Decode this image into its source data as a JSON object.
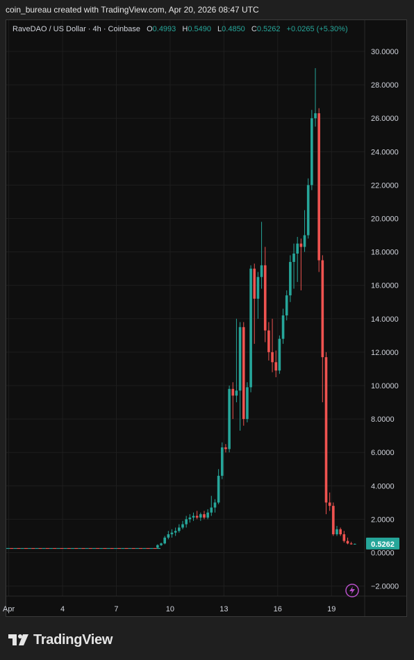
{
  "attribution": "coin_bureau created with TradingView.com, Apr 20, 2026 08:47 UTC",
  "legend": {
    "symbol": "RaveDAO / US Dollar · 4h · Coinbase",
    "o_label": "O",
    "o_value": "0.4993",
    "h_label": "H",
    "h_value": "0.5490",
    "l_label": "L",
    "l_value": "0.4850",
    "c_label": "C",
    "c_value": "0.5262",
    "change": "+0.0265 (+5.30%)"
  },
  "current_price": "0.5262",
  "footer": {
    "brand": "TradingView",
    "logo_icon": "tradingview-logo-icon"
  },
  "colors": {
    "up": "#26a69a",
    "down": "#ef5350",
    "background": "#0f0f0f",
    "price_tag": "#26a69a"
  },
  "chart_data": {
    "type": "candlestick",
    "timeframe": "4h",
    "ylim": [
      -2.6,
      31
    ],
    "y_ticks": [
      "30.0000",
      "28.0000",
      "26.0000",
      "24.0000",
      "22.0000",
      "20.0000",
      "18.0000",
      "16.0000",
      "14.0000",
      "12.0000",
      "10.0000",
      "8.0000",
      "6.0000",
      "4.0000",
      "2.0000",
      "0.0000",
      "−2.0000"
    ],
    "y_tick_values": [
      30,
      28,
      26,
      24,
      22,
      20,
      18,
      16,
      14,
      12,
      10,
      8,
      6,
      4,
      2,
      0,
      -2
    ],
    "x_ticks": [
      "Apr",
      "4",
      "7",
      "10",
      "13",
      "16",
      "19"
    ],
    "x_tick_days": [
      1,
      4,
      7,
      10,
      13,
      16,
      19
    ],
    "x_range_days": [
      0.86,
      20.85
    ],
    "candles": [
      {
        "d": 9.3,
        "o": 0.3,
        "h": 0.5,
        "l": 0.25,
        "c": 0.45
      },
      {
        "d": 9.5,
        "o": 0.45,
        "h": 0.6,
        "l": 0.4,
        "c": 0.55
      },
      {
        "d": 9.7,
        "o": 0.55,
        "h": 1.0,
        "l": 0.5,
        "c": 0.9
      },
      {
        "d": 9.9,
        "o": 0.9,
        "h": 1.3,
        "l": 0.8,
        "c": 1.1
      },
      {
        "d": 10.1,
        "o": 1.1,
        "h": 1.4,
        "l": 0.9,
        "c": 1.2
      },
      {
        "d": 10.3,
        "o": 1.2,
        "h": 1.5,
        "l": 1.0,
        "c": 1.3
      },
      {
        "d": 10.5,
        "o": 1.3,
        "h": 1.7,
        "l": 1.2,
        "c": 1.5
      },
      {
        "d": 10.7,
        "o": 1.5,
        "h": 1.9,
        "l": 1.4,
        "c": 1.7
      },
      {
        "d": 10.9,
        "o": 1.7,
        "h": 2.2,
        "l": 1.5,
        "c": 2.0
      },
      {
        "d": 11.1,
        "o": 2.0,
        "h": 2.3,
        "l": 1.8,
        "c": 2.1
      },
      {
        "d": 11.3,
        "o": 2.1,
        "h": 2.4,
        "l": 1.9,
        "c": 2.2
      },
      {
        "d": 11.5,
        "o": 2.2,
        "h": 2.5,
        "l": 2.0,
        "c": 2.1
      },
      {
        "d": 11.7,
        "o": 2.1,
        "h": 2.4,
        "l": 1.9,
        "c": 2.3
      },
      {
        "d": 11.9,
        "o": 2.3,
        "h": 2.5,
        "l": 2.0,
        "c": 2.1
      },
      {
        "d": 12.1,
        "o": 2.1,
        "h": 2.6,
        "l": 2.0,
        "c": 2.4
      },
      {
        "d": 12.3,
        "o": 2.4,
        "h": 3.4,
        "l": 2.2,
        "c": 2.7
      },
      {
        "d": 12.5,
        "o": 2.7,
        "h": 3.2,
        "l": 2.4,
        "c": 3.0
      },
      {
        "d": 12.7,
        "o": 3.0,
        "h": 5.0,
        "l": 2.9,
        "c": 4.6
      },
      {
        "d": 12.9,
        "o": 4.6,
        "h": 6.6,
        "l": 4.4,
        "c": 6.3
      },
      {
        "d": 13.1,
        "o": 6.3,
        "h": 6.5,
        "l": 6.0,
        "c": 6.2
      },
      {
        "d": 13.3,
        "o": 6.2,
        "h": 10.0,
        "l": 6.0,
        "c": 9.8
      },
      {
        "d": 13.5,
        "o": 9.8,
        "h": 10.2,
        "l": 8.0,
        "c": 9.4
      },
      {
        "d": 13.7,
        "o": 9.4,
        "h": 14.0,
        "l": 9.0,
        "c": 9.7
      },
      {
        "d": 13.9,
        "o": 9.7,
        "h": 13.8,
        "l": 7.3,
        "c": 13.5
      },
      {
        "d": 14.1,
        "o": 13.5,
        "h": 13.8,
        "l": 7.6,
        "c": 8.0
      },
      {
        "d": 14.3,
        "o": 8.0,
        "h": 10.2,
        "l": 7.8,
        "c": 9.9
      },
      {
        "d": 14.5,
        "o": 9.9,
        "h": 17.2,
        "l": 9.6,
        "c": 17.0
      },
      {
        "d": 14.7,
        "o": 17.0,
        "h": 17.3,
        "l": 12.5,
        "c": 15.2
      },
      {
        "d": 14.9,
        "o": 15.2,
        "h": 16.8,
        "l": 14.0,
        "c": 16.5
      },
      {
        "d": 15.1,
        "o": 16.5,
        "h": 19.8,
        "l": 15.8,
        "c": 17.2
      },
      {
        "d": 15.3,
        "o": 17.2,
        "h": 18.3,
        "l": 12.6,
        "c": 13.3
      },
      {
        "d": 15.5,
        "o": 13.3,
        "h": 13.8,
        "l": 11.5,
        "c": 12.0
      },
      {
        "d": 15.7,
        "o": 12.0,
        "h": 14.0,
        "l": 10.8,
        "c": 11.4
      },
      {
        "d": 15.9,
        "o": 11.4,
        "h": 12.1,
        "l": 10.5,
        "c": 10.9
      },
      {
        "d": 16.1,
        "o": 10.9,
        "h": 13.0,
        "l": 10.7,
        "c": 12.8
      },
      {
        "d": 16.3,
        "o": 12.8,
        "h": 14.6,
        "l": 12.5,
        "c": 14.2
      },
      {
        "d": 16.5,
        "o": 14.2,
        "h": 15.7,
        "l": 13.9,
        "c": 15.4
      },
      {
        "d": 16.7,
        "o": 15.4,
        "h": 17.8,
        "l": 15.0,
        "c": 17.4
      },
      {
        "d": 16.9,
        "o": 17.4,
        "h": 18.5,
        "l": 15.8,
        "c": 17.9
      },
      {
        "d": 17.1,
        "o": 17.9,
        "h": 18.9,
        "l": 16.2,
        "c": 18.5
      },
      {
        "d": 17.3,
        "o": 18.5,
        "h": 18.8,
        "l": 15.7,
        "c": 18.3
      },
      {
        "d": 17.5,
        "o": 18.3,
        "h": 20.5,
        "l": 18.0,
        "c": 19.0
      },
      {
        "d": 17.7,
        "o": 19.0,
        "h": 22.4,
        "l": 18.8,
        "c": 22.0
      },
      {
        "d": 17.9,
        "o": 22.0,
        "h": 26.5,
        "l": 21.7,
        "c": 26.0
      },
      {
        "d": 18.1,
        "o": 26.0,
        "h": 29.0,
        "l": 25.5,
        "c": 26.3
      },
      {
        "d": 18.3,
        "o": 26.3,
        "h": 26.6,
        "l": 16.8,
        "c": 17.5
      },
      {
        "d": 18.5,
        "o": 17.5,
        "h": 17.8,
        "l": 9.0,
        "c": 11.7
      },
      {
        "d": 18.7,
        "o": 11.7,
        "h": 12.0,
        "l": 2.3,
        "c": 3.0
      },
      {
        "d": 18.9,
        "o": 3.0,
        "h": 3.6,
        "l": 2.5,
        "c": 2.8
      },
      {
        "d": 19.1,
        "o": 2.8,
        "h": 3.0,
        "l": 1.0,
        "c": 1.1
      },
      {
        "d": 19.3,
        "o": 1.1,
        "h": 1.6,
        "l": 1.0,
        "c": 1.4
      },
      {
        "d": 19.5,
        "o": 1.4,
        "h": 1.5,
        "l": 1.0,
        "c": 1.1
      },
      {
        "d": 19.7,
        "o": 1.1,
        "h": 1.3,
        "l": 0.6,
        "c": 0.7
      },
      {
        "d": 19.9,
        "o": 0.7,
        "h": 0.9,
        "l": 0.5,
        "c": 0.55
      },
      {
        "d": 20.1,
        "o": 0.55,
        "h": 0.65,
        "l": 0.48,
        "c": 0.5
      },
      {
        "d": 20.3,
        "o": 0.4993,
        "h": 0.549,
        "l": 0.485,
        "c": 0.5262
      }
    ],
    "baseline_segment": {
      "from_day": 0.86,
      "to_day": 9.3,
      "value": 0.25
    }
  }
}
